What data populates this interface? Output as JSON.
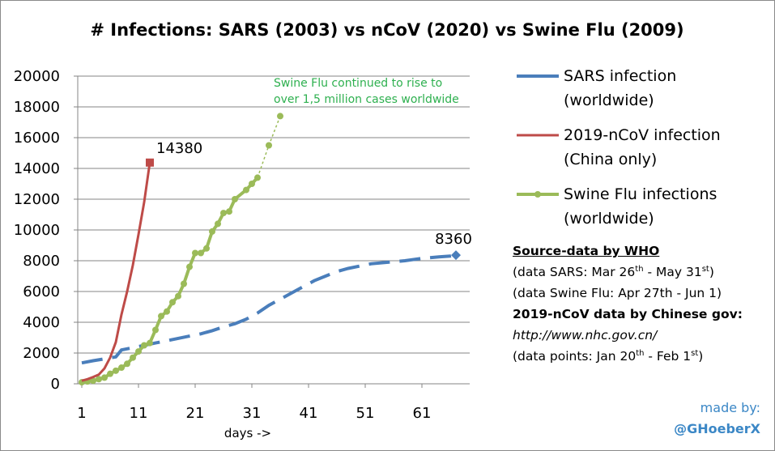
{
  "chart_data": {
    "type": "line",
    "title": "# Infections: SARS (2003) vs nCoV (2020) vs Swine Flu (2009)",
    "xlabel": "days ->",
    "ylabel": "",
    "xlim": [
      1,
      68
    ],
    "ylim": [
      0,
      20000
    ],
    "xticks": [
      1,
      11,
      21,
      31,
      41,
      51,
      61
    ],
    "yticks": [
      0,
      2000,
      4000,
      6000,
      8000,
      10000,
      12000,
      14000,
      16000,
      18000,
      20000
    ],
    "grid": "horizontal",
    "legend_position": "right",
    "series": [
      {
        "name_line1": "SARS infection",
        "name_line2": "(worldwide)",
        "color": "#4a7ebb",
        "style": "dashed",
        "end_label": "8360",
        "points": [
          [
            1,
            1360
          ],
          [
            3,
            1500
          ],
          [
            5,
            1620
          ],
          [
            7,
            1750
          ],
          [
            8,
            2200
          ],
          [
            10,
            2350
          ],
          [
            12,
            2500
          ],
          [
            14,
            2650
          ],
          [
            16,
            2800
          ],
          [
            18,
            2950
          ],
          [
            20,
            3100
          ],
          [
            22,
            3250
          ],
          [
            24,
            3450
          ],
          [
            26,
            3700
          ],
          [
            28,
            3900
          ],
          [
            30,
            4200
          ],
          [
            32,
            4600
          ],
          [
            34,
            5100
          ],
          [
            36,
            5500
          ],
          [
            38,
            5900
          ],
          [
            40,
            6300
          ],
          [
            42,
            6700
          ],
          [
            44,
            7000
          ],
          [
            46,
            7300
          ],
          [
            48,
            7500
          ],
          [
            50,
            7650
          ],
          [
            52,
            7800
          ],
          [
            55,
            7900
          ],
          [
            58,
            8000
          ],
          [
            61,
            8150
          ],
          [
            64,
            8250
          ],
          [
            66,
            8300
          ],
          [
            67,
            8360
          ]
        ]
      },
      {
        "name_line1": "2019-nCoV infection",
        "name_line2": "(China only)",
        "color": "#be4b48",
        "style": "solid",
        "end_label": "14380",
        "points": [
          [
            1,
            200
          ],
          [
            2,
            300
          ],
          [
            3,
            440
          ],
          [
            4,
            600
          ],
          [
            5,
            1000
          ],
          [
            6,
            1700
          ],
          [
            7,
            2700
          ],
          [
            8,
            4500
          ],
          [
            9,
            6000
          ],
          [
            10,
            7700
          ],
          [
            11,
            9700
          ],
          [
            12,
            11800
          ],
          [
            13,
            14380
          ]
        ]
      },
      {
        "name_line1": "Swine Flu infections",
        "name_line2": "(worldwide)",
        "color": "#9bbb59",
        "style": "solid-markers",
        "end_label": "",
        "points": [
          [
            1,
            100
          ],
          [
            2,
            150
          ],
          [
            3,
            200
          ],
          [
            4,
            300
          ],
          [
            5,
            400
          ],
          [
            6,
            650
          ],
          [
            7,
            850
          ],
          [
            8,
            1050
          ],
          [
            9,
            1300
          ],
          [
            10,
            1700
          ],
          [
            11,
            2100
          ],
          [
            12,
            2500
          ],
          [
            13,
            2650
          ],
          [
            14,
            3500
          ],
          [
            15,
            4400
          ],
          [
            16,
            4700
          ],
          [
            17,
            5300
          ],
          [
            18,
            5700
          ],
          [
            19,
            6500
          ],
          [
            20,
            7600
          ],
          [
            21,
            8500
          ],
          [
            22,
            8500
          ],
          [
            23,
            8800
          ],
          [
            24,
            9900
          ],
          [
            25,
            10400
          ],
          [
            26,
            11100
          ],
          [
            27,
            11200
          ],
          [
            28,
            12000
          ],
          [
            30,
            12600
          ],
          [
            31,
            13000
          ],
          [
            32,
            13400
          ]
        ],
        "projection": [
          [
            32,
            13400
          ],
          [
            34,
            15500
          ],
          [
            36,
            17400
          ]
        ]
      }
    ],
    "annotation_swine_line1": "Swine Flu continued to rise to",
    "annotation_swine_line2": "over 1,5 million cases worldwide"
  },
  "info": {
    "source_title": "Source-data by WHO",
    "sars_dates_prefix": "(data SARS: Mar 26",
    "sup_th": "th",
    "sars_dates_mid": " - May 31",
    "sup_st": "st",
    "close_paren": ")",
    "swine_dates": "(data Swine Flu: Apr 27th - Jun 1)",
    "ncov_source": "2019-nCoV data by Chinese gov:",
    "url": "http://www.nhc.gov.cn/",
    "ncov_dates_prefix": "(data points: Jan 20",
    "ncov_dates_mid": " - Feb 1"
  },
  "credit": {
    "made_by": "made by:",
    "handle": "@GHoeberX"
  }
}
